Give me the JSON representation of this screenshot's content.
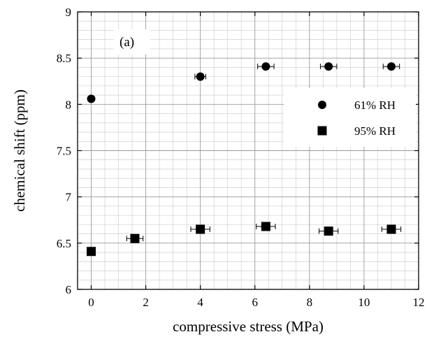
{
  "chart_data": {
    "type": "scatter",
    "panel_label": "(a)",
    "xlabel": "compressive stress (MPa)",
    "ylabel": "chemical shift (ppm)",
    "xlim": [
      -0.5,
      12
    ],
    "ylim": [
      6,
      9
    ],
    "x_ticks": [
      "0",
      "2",
      "4",
      "6",
      "8",
      "10",
      "12"
    ],
    "y_ticks": [
      "6",
      "6.5",
      "7",
      "7.5",
      "8",
      "8.5",
      "9"
    ],
    "grid": true,
    "legend_position": "right",
    "series": [
      {
        "name": "61% RH",
        "marker": "circle",
        "color": "#000000",
        "x": [
          0,
          4.0,
          6.4,
          8.7,
          11.0
        ],
        "y": [
          8.06,
          8.3,
          8.41,
          8.41,
          8.41
        ],
        "xerr": [
          0,
          0.2,
          0.3,
          0.3,
          0.3
        ]
      },
      {
        "name": "95% RH",
        "marker": "square",
        "color": "#000000",
        "x": [
          0,
          1.6,
          4.0,
          6.4,
          8.7,
          11.0
        ],
        "y": [
          6.41,
          6.55,
          6.65,
          6.68,
          6.63,
          6.65
        ],
        "xerr": [
          0,
          0.3,
          0.35,
          0.35,
          0.35,
          0.35
        ]
      }
    ]
  }
}
